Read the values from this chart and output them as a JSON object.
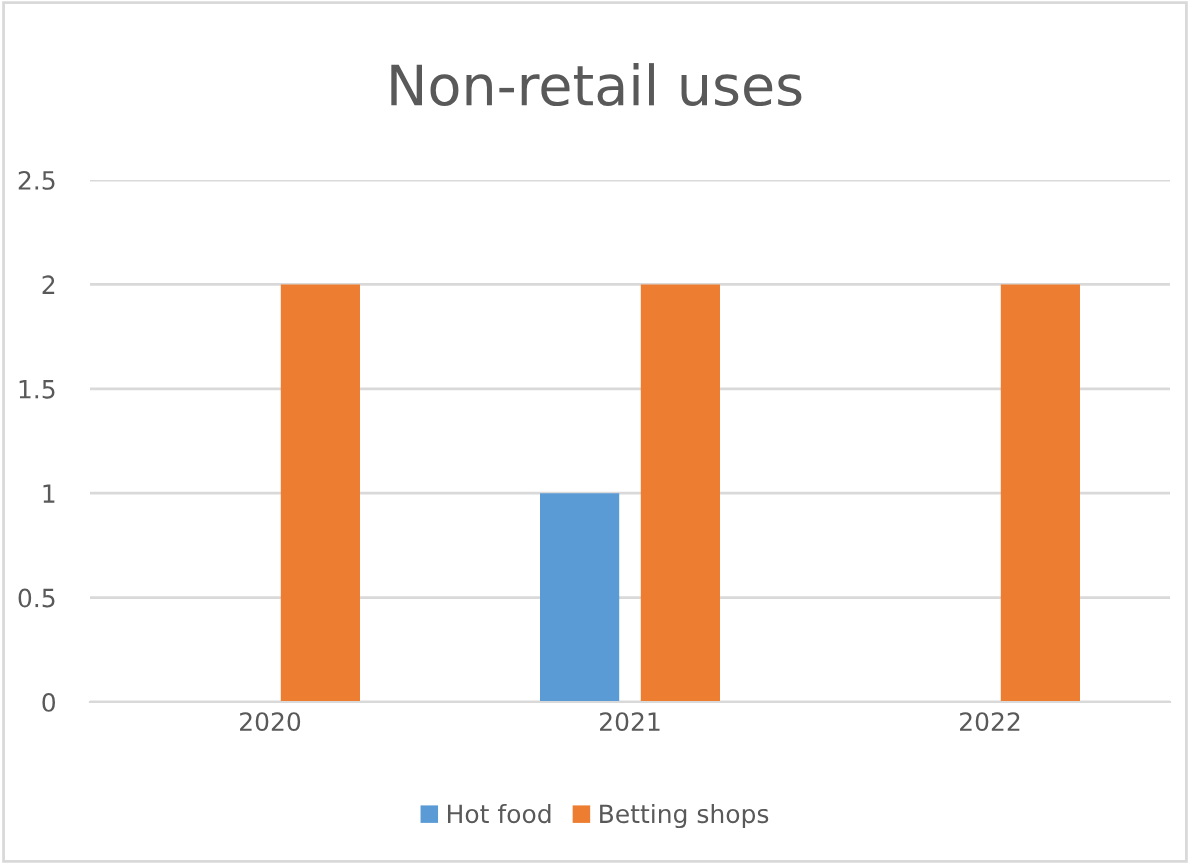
{
  "chart_data": {
    "type": "bar",
    "title": "Non-retail uses",
    "categories": [
      "2020",
      "2021",
      "2022"
    ],
    "series": [
      {
        "name": "Hot food",
        "color": "#5b9bd5",
        "values": [
          0,
          1,
          0
        ]
      },
      {
        "name": "Betting shops",
        "color": "#ed7d31",
        "values": [
          2,
          2,
          2
        ]
      }
    ],
    "ylim": [
      0,
      2.5
    ],
    "yticks": [
      0,
      0.5,
      1,
      1.5,
      2,
      2.5
    ],
    "grid": "y",
    "legend": "bottom"
  }
}
